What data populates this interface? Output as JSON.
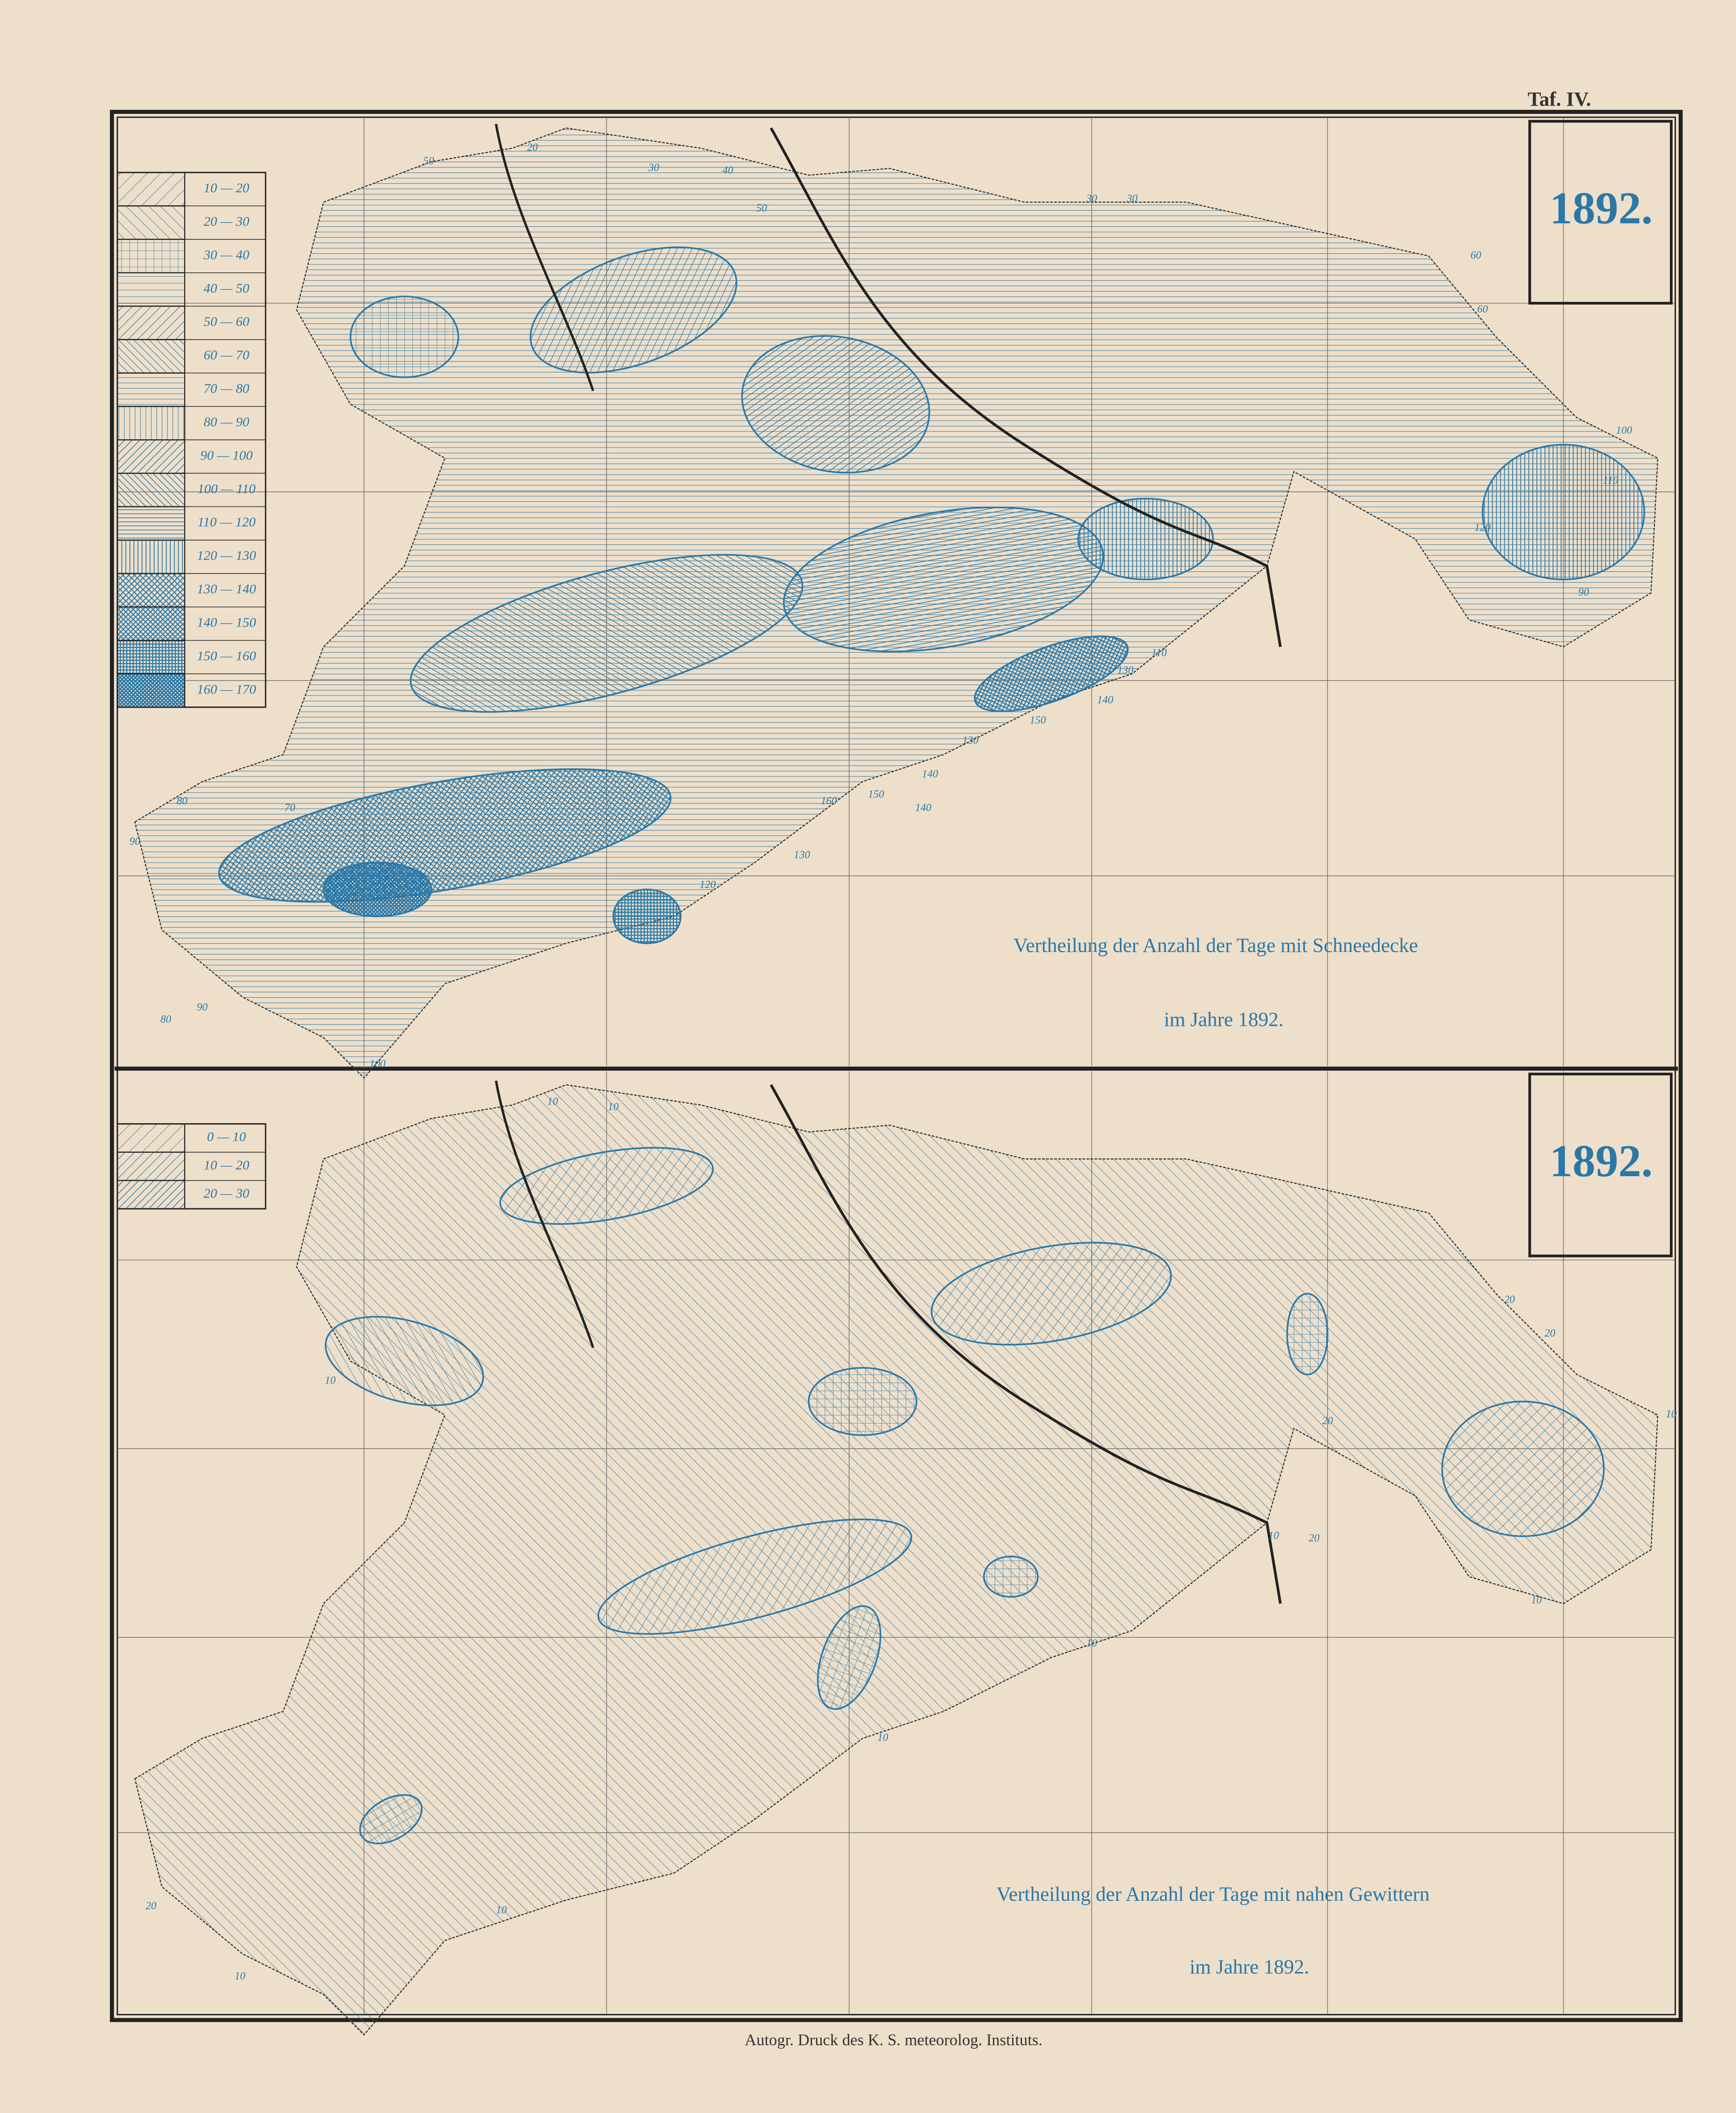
{
  "plate": "Taf. IV.",
  "maps": [
    {
      "year": "1892.",
      "legend": [
        "10 — 20",
        "20 — 30",
        "30 — 40",
        "40 — 50",
        "50 — 60",
        "60 — 70",
        "70 — 80",
        "80 — 90",
        "90 — 100",
        "100 — 110",
        "110 — 120",
        "120 — 130",
        "130 — 140",
        "140 — 150",
        "150 — 160",
        "160 — 170"
      ],
      "caption": [
        "Vertheilung der Anzahl der Tage mit Schneedecke",
        "im Jahre 1892."
      ],
      "contour_labels": [
        50,
        20,
        30,
        40,
        50,
        60,
        30,
        30,
        60,
        90,
        100,
        110,
        120,
        110,
        130,
        140,
        150,
        130,
        140,
        150,
        160,
        140,
        130,
        120,
        100,
        90,
        80,
        70,
        80,
        90
      ]
    },
    {
      "year": "1892.",
      "legend": [
        "0 — 10",
        "10 — 20",
        "20 — 30"
      ],
      "caption": [
        "Vertheilung der Anzahl der Tage mit nahen Gewittern",
        "im Jahre 1892."
      ],
      "contour_labels": [
        10,
        10,
        20,
        20,
        10,
        20,
        10,
        20,
        10,
        10,
        10,
        10,
        10,
        20,
        10
      ]
    }
  ],
  "footer": "Autogr. Druck des K. S. meteorolog. Instituts."
}
